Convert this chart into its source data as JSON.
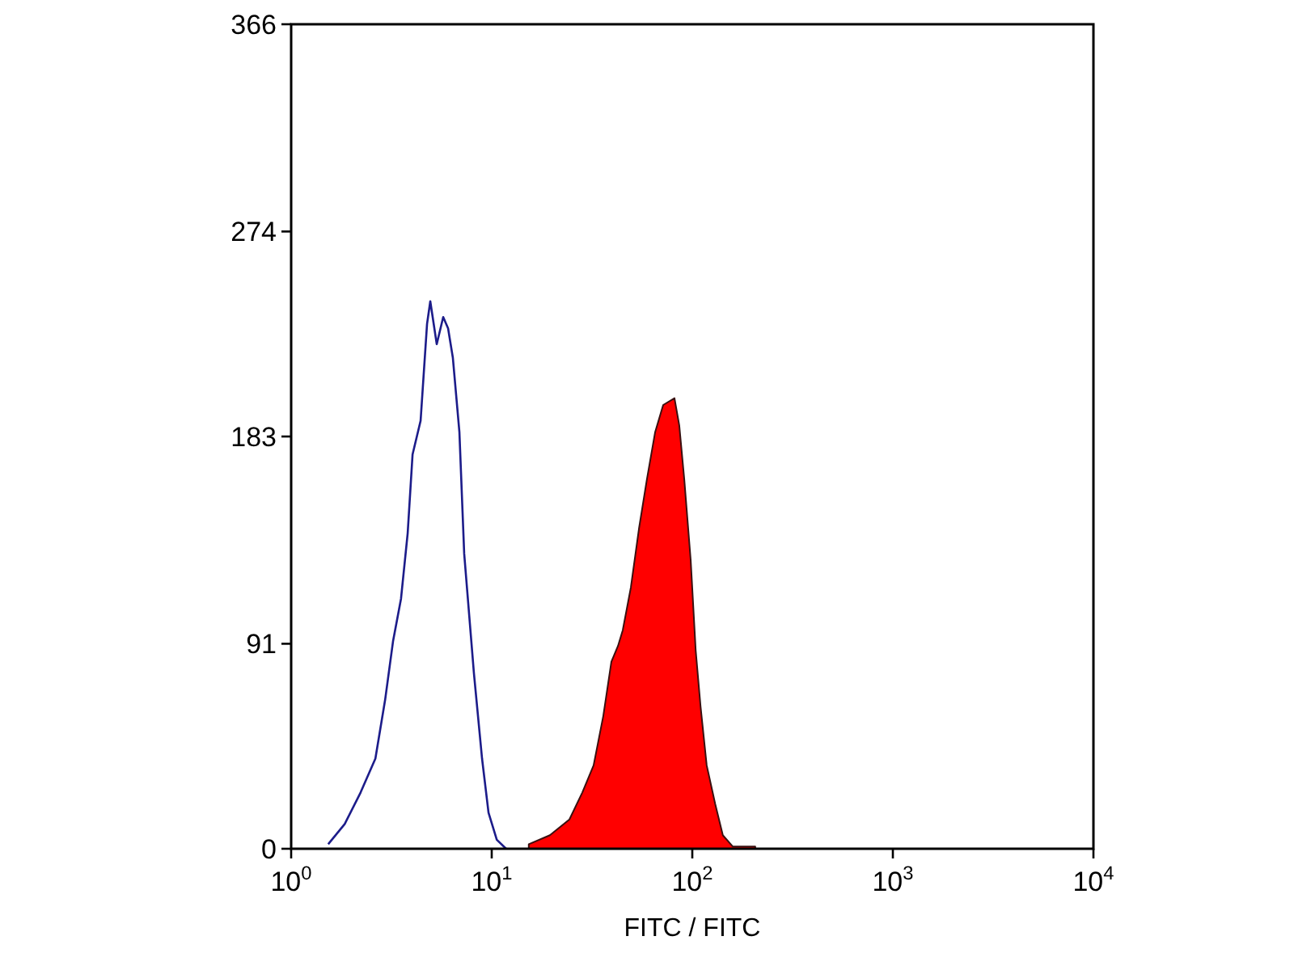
{
  "chart_data": {
    "type": "line",
    "xlabel": "FITC / FITC",
    "log": "x",
    "xlim": [
      1,
      10000
    ],
    "xticks": [
      {
        "value": 1,
        "label": "10$^{0}$"
      },
      {
        "value": 10,
        "label": "10$^{1}$"
      },
      {
        "value": 100,
        "label": "10$^{2}$"
      },
      {
        "value": 1000,
        "label": "10$^{3}$"
      },
      {
        "value": 10000,
        "label": "10$^{4}$"
      }
    ],
    "ylim": [
      0,
      366
    ],
    "yticks": [
      0,
      91,
      183,
      274,
      366
    ],
    "grid": false,
    "series": [
      {
        "color": "#1c1c8a",
        "x": [
          1.53,
          1.85,
          2.22,
          2.63,
          2.94,
          3.22,
          3.53,
          3.81,
          4.03,
          4.42,
          4.76,
          4.94,
          5.32,
          5.73,
          6.06,
          6.4,
          6.9,
          7.29,
          8.15,
          8.95,
          9.64,
          10.6,
          11.8
        ],
        "values": [
          2,
          11,
          25,
          40,
          66,
          92,
          111,
          140,
          175,
          190,
          233,
          243,
          224,
          236,
          231,
          218,
          185,
          131,
          78,
          40,
          16,
          4,
          0
        ]
      },
      {
        "type": "area",
        "color": "#ff0000",
        "x": [
          15.3,
          19.5,
          24.4,
          28.3,
          32.2,
          36,
          39.5,
          42.6,
          45,
          49.4,
          54.2,
          59.4,
          65.3,
          71.6,
          81.5,
          86.1,
          91.2,
          98.2,
          104,
          110,
          118,
          130,
          142,
          159,
          206
        ],
        "values": [
          2,
          6,
          13,
          25,
          37,
          59,
          83,
          90,
          97,
          116,
          142,
          164,
          185,
          197,
          200,
          188,
          164,
          128,
          88,
          63,
          37,
          20,
          6,
          1,
          1
        ]
      }
    ]
  }
}
